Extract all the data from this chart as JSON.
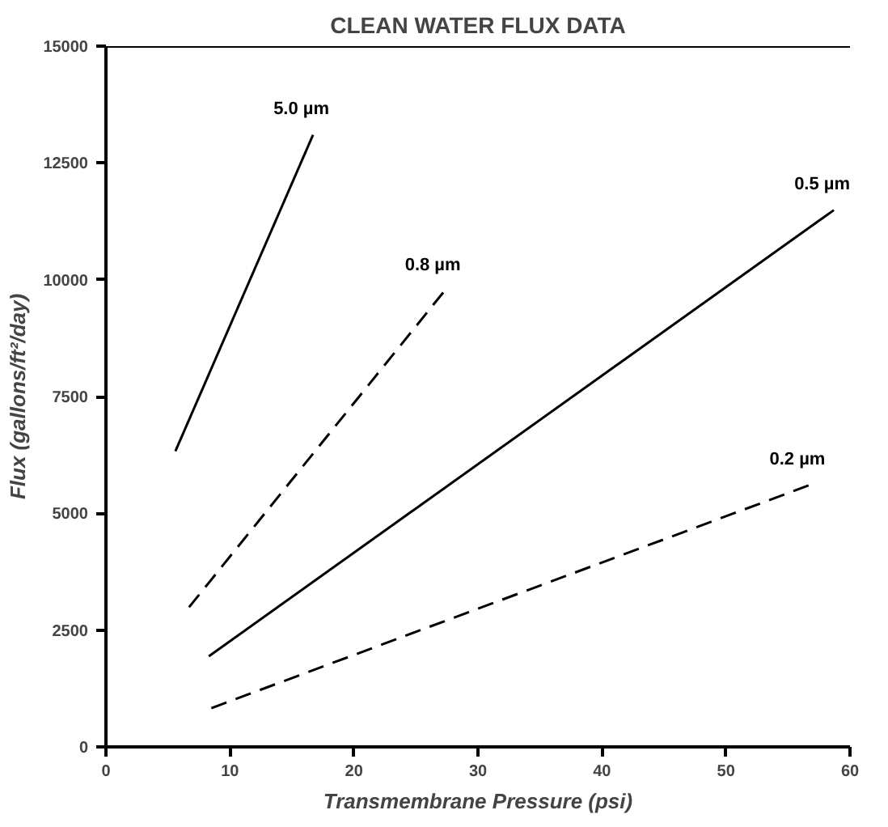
{
  "chart_data": {
    "type": "line",
    "title": "CLEAN WATER FLUX DATA",
    "xlabel": "Transmembrane Pressure (psi)",
    "ylabel": "Flux (gallons/ft²/day)",
    "xlim": [
      0,
      60
    ],
    "xticks": [
      0,
      10,
      20,
      30,
      40,
      50,
      60
    ],
    "ylim": [
      0,
      15000
    ],
    "yticks": [
      0,
      2500,
      5000,
      7500,
      10000,
      12500,
      15000
    ],
    "grid": false,
    "legend": false,
    "marker": "none",
    "series": [
      {
        "name": "5.0 µm",
        "color": "#000000",
        "line_style": "solid",
        "x": [
          5.6,
          16.7
        ],
        "values": [
          6330,
          13100
        ]
      },
      {
        "name": "0.8 µm",
        "color": "#000000",
        "line_style": "dashed",
        "x": [
          6.7,
          27.3
        ],
        "values": [
          2990,
          9760
        ]
      },
      {
        "name": "0.5 µm",
        "color": "#000000",
        "line_style": "solid",
        "x": [
          8.3,
          58.7
        ],
        "values": [
          1940,
          11490
        ]
      },
      {
        "name": "0.2 µm",
        "color": "#000000",
        "line_style": "dashed",
        "x": [
          8.5,
          56.7
        ],
        "values": [
          830,
          5600
        ]
      }
    ]
  }
}
